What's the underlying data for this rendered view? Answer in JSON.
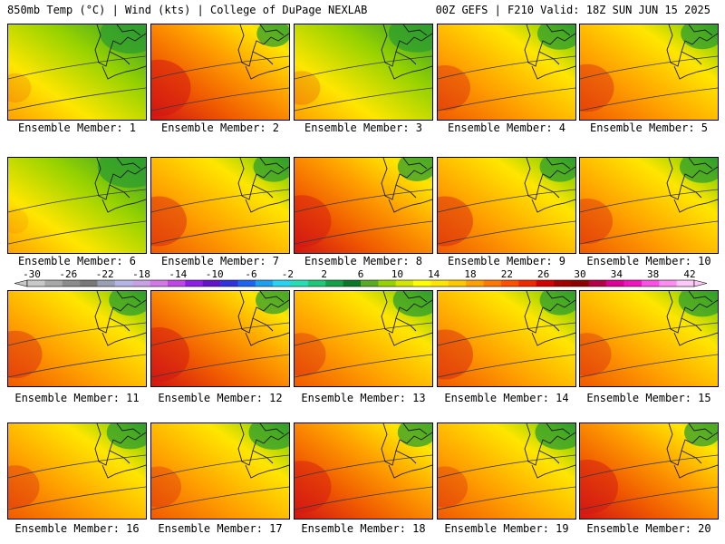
{
  "header": {
    "title_left": "850mb Temp (°C) | Wind (kts) | College of DuPage NEXLAB",
    "title_right": "00Z GEFS | F210 Valid: 18Z SUN JUN 15 2025"
  },
  "panels": [
    {
      "label": "Ensemble Member: 1",
      "warmth": 0.25
    },
    {
      "label": "Ensemble Member: 2",
      "warmth": 0.85
    },
    {
      "label": "Ensemble Member: 3",
      "warmth": 0.35
    },
    {
      "label": "Ensemble Member: 4",
      "warmth": 0.6
    },
    {
      "label": "Ensemble Member: 5",
      "warmth": 0.65
    },
    {
      "label": "Ensemble Member: 6",
      "warmth": 0.15
    },
    {
      "label": "Ensemble Member: 7",
      "warmth": 0.7
    },
    {
      "label": "Ensemble Member: 8",
      "warmth": 0.75
    },
    {
      "label": "Ensemble Member: 9",
      "warmth": 0.7
    },
    {
      "label": "Ensemble Member: 10",
      "warmth": 0.6
    },
    {
      "label": "Ensemble Member: 11",
      "warmth": 0.65
    },
    {
      "label": "Ensemble Member: 12",
      "warmth": 0.8
    },
    {
      "label": "Ensemble Member: 13",
      "warmth": 0.55
    },
    {
      "label": "Ensemble Member: 14",
      "warmth": 0.7
    },
    {
      "label": "Ensemble Member: 15",
      "warmth": 0.55
    },
    {
      "label": "Ensemble Member: 16",
      "warmth": 0.55
    },
    {
      "label": "Ensemble Member: 17",
      "warmth": 0.5
    },
    {
      "label": "Ensemble Member: 18",
      "warmth": 0.75
    },
    {
      "label": "Ensemble Member: 19",
      "warmth": 0.5
    },
    {
      "label": "Ensemble Member: 20",
      "warmth": 0.8
    }
  ],
  "colorbar": {
    "ticks": [
      "-30",
      "-26",
      "-22",
      "-18",
      "-14",
      "-10",
      "-6",
      "-2",
      "2",
      "6",
      "10",
      "14",
      "18",
      "22",
      "26",
      "30",
      "34",
      "38",
      "42"
    ],
    "colors": [
      "#c8c8c8",
      "#a8a8a8",
      "#8c8c8c",
      "#787878",
      "#9aa0b4",
      "#b4b4e6",
      "#c8a0e6",
      "#d278e6",
      "#be46e6",
      "#8c1ee6",
      "#6414c8",
      "#3232dc",
      "#1e64f0",
      "#1ea0f0",
      "#28d2f0",
      "#28dcb4",
      "#1ec878",
      "#14a046",
      "#0a7828",
      "#5aaa28",
      "#96d200",
      "#d2e600",
      "#ffff00",
      "#ffe600",
      "#ffc800",
      "#ffa000",
      "#ff7800",
      "#ff5000",
      "#f02800",
      "#d20000",
      "#a00000",
      "#8c0000",
      "#b40046",
      "#dc0096",
      "#f014be",
      "#ff50e6",
      "#ff8cf0",
      "#ffc8f8"
    ]
  },
  "colors": {
    "cool": "#2e9e2e",
    "cool_light": "#96d200",
    "mild": "#ffe600",
    "warm": "#ffa000",
    "hot": "#f05a00",
    "very_hot": "#d21414",
    "outline": "#1a1a1a",
    "contour": "#3a3a3a"
  }
}
